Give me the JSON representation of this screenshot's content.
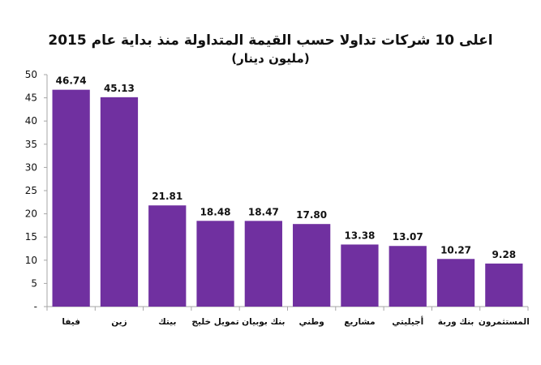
{
  "chart_data": {
    "type": "bar",
    "title": "اعلى 10 شركات تداولا حسب القيمة المتداولة منذ بداية عام 2015",
    "subtitle": "(مليون دينار)",
    "xlabel": "",
    "ylabel": "",
    "categories": [
      "فيفا",
      "زين",
      "بيتك",
      "تمويل خليج",
      "بنك بوبيان",
      "وطني",
      "مشاريع",
      "أجيليتي",
      "بنك وربة",
      "المستثمرون"
    ],
    "values": [
      46.74,
      45.13,
      21.81,
      18.48,
      18.47,
      17.8,
      13.38,
      13.07,
      10.27,
      9.28
    ],
    "value_labels": [
      "46.74",
      "45.13",
      "21.81",
      "18.48",
      "18.47",
      "17.80",
      "13.38",
      "13.07",
      "10.27",
      "9.28"
    ],
    "ylim": [
      0,
      50
    ],
    "y_ticks": [
      0,
      5,
      10,
      15,
      20,
      25,
      30,
      35,
      40,
      45,
      50
    ],
    "y_tick_labels": [
      "-",
      "5",
      "10",
      "15",
      "20",
      "25",
      "30",
      "35",
      "40",
      "45",
      "50"
    ],
    "grid": false,
    "legend": "none",
    "bar_color": "#7030a0",
    "axis_color": "#a6a6a6"
  }
}
